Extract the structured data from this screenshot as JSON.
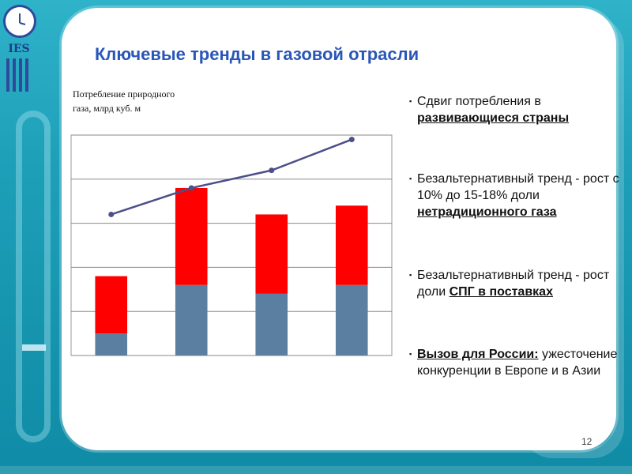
{
  "title": "Ключевые тренды в газовой отрасли",
  "logo_text": "IES",
  "chart_caption_line1": "Потребление природного",
  "chart_caption_line2": "газа, млрд куб. м",
  "bullets": [
    {
      "marker": "▪",
      "text": "Сдвиг потребления в ",
      "highlight": "развивающиеся страны",
      "rest": ""
    },
    {
      "marker": "▪",
      "text": "Безальтернативный тренд - рост с 10% до 15-18% доли ",
      "highlight": "нетрадиционного газа",
      "rest": ""
    },
    {
      "marker": "▪",
      "text": "Безальтернативный тренд - рост доли ",
      "highlight": "СПГ в поставках",
      "rest": ""
    },
    {
      "marker": "▪",
      "text": "",
      "highlight": "Вызов для России:",
      "rest": " ужесточение конкуренции в Европе и в Азии"
    }
  ],
  "page_number": "12",
  "colors": {
    "blue_bar": "#5b7fa0",
    "red_bar": "#ff0000",
    "line": "#4b4f8a",
    "title": "#2a56b8"
  },
  "chart_data": {
    "type": "bar",
    "stacked": true,
    "categories": [
      "",
      "",
      "",
      ""
    ],
    "series": [
      {
        "values": [
          0.5,
          1.6,
          1.4,
          1.6
        ]
      },
      {
        "values": [
          1.3,
          2.2,
          1.8,
          1.8
        ]
      }
    ],
    "line_series": {
      "values": [
        3.2,
        3.8,
        4.2,
        4.9
      ]
    },
    "ylim": [
      0,
      5
    ],
    "y_gridlines": [
      0,
      1,
      2,
      3,
      4,
      5
    ],
    "grid": true,
    "title": "",
    "xlabel": "",
    "ylabel": ""
  }
}
